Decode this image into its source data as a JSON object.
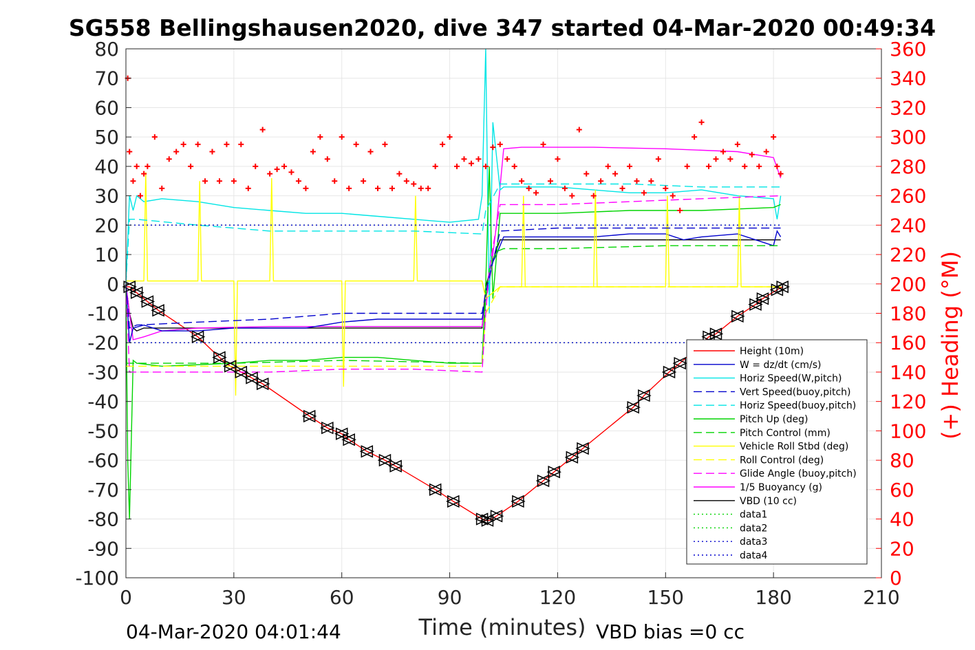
{
  "chart_data": {
    "type": "line",
    "title": "SG558 Bellingshausen2020, dive 347 started 04-Mar-2020 00:49:34",
    "xlabel": "Time (minutes)",
    "ylabel_right": "(+) Heading (°M)",
    "footer_left": "04-Mar-2020 04:01:44",
    "footer_right": "VBD bias =0 cc",
    "xlim": [
      0,
      210
    ],
    "ylim": [
      -100,
      80
    ],
    "ylim_right": [
      0,
      360
    ],
    "xticks": [
      "0",
      "30",
      "60",
      "90",
      "120",
      "150",
      "180",
      "210"
    ],
    "yticks": [
      "80",
      "70",
      "60",
      "50",
      "40",
      "30",
      "20",
      "10",
      "0",
      "-10",
      "-20",
      "-30",
      "-40",
      "-50",
      "-60",
      "-70",
      "-80",
      "-90",
      "-100"
    ],
    "yticks_right": [
      "360",
      "340",
      "320",
      "300",
      "280",
      "260",
      "240",
      "220",
      "200",
      "180",
      "160",
      "140",
      "120",
      "100",
      "80",
      "60",
      "40",
      "20",
      "0"
    ],
    "grid": true,
    "legend_position": "lower-right",
    "legend": [
      {
        "label": "Height (10m)",
        "color": "#ff0000",
        "dash": "solid"
      },
      {
        "label": "W = dz/dt (cm/s)",
        "color": "#0000cd",
        "dash": "solid"
      },
      {
        "label": "Horiz Speed(W,pitch)",
        "color": "#00e5e5",
        "dash": "solid"
      },
      {
        "label": "Vert Speed(buoy,pitch)",
        "color": "#0000cd",
        "dash": "dashed"
      },
      {
        "label": "Horiz Speed(buoy,pitch)",
        "color": "#00e5e5",
        "dash": "dashed"
      },
      {
        "label": "Pitch Up (deg)",
        "color": "#00d400",
        "dash": "solid"
      },
      {
        "label": "Pitch Control (mm)",
        "color": "#00d400",
        "dash": "dashed"
      },
      {
        "label": "Vehicle Roll Stbd (deg)",
        "color": "#ffff00",
        "dash": "solid"
      },
      {
        "label": "Roll Control (deg)",
        "color": "#ffff00",
        "dash": "dashed"
      },
      {
        "label": "Glide Angle (buoy,pitch)",
        "color": "#ff00ff",
        "dash": "dashed"
      },
      {
        "label": "1/5 Buoyancy (g)",
        "color": "#ff00ff",
        "dash": "solid"
      },
      {
        "label": "VBD (10 cc)",
        "color": "#000000",
        "dash": "solid"
      },
      {
        "label": "data1",
        "color": "#00d400",
        "dash": "dotted"
      },
      {
        "label": "data2",
        "color": "#00d400",
        "dash": "dotted"
      },
      {
        "label": "data3",
        "color": "#0000cd",
        "dash": "dotted"
      },
      {
        "label": "data4",
        "color": "#0000cd",
        "dash": "dotted"
      }
    ],
    "series": [
      {
        "name": "Height (10m)",
        "color": "#ff0000",
        "dash": "solid",
        "axis": "left",
        "x": [
          0,
          1,
          3,
          6,
          9,
          20,
          26,
          29,
          32,
          35,
          38,
          51,
          56,
          60,
          62,
          67,
          72,
          75,
          86,
          91,
          99,
          100,
          101,
          103,
          109,
          116,
          119,
          124,
          127,
          141,
          144,
          151,
          154,
          162,
          164,
          170,
          175,
          177,
          181,
          182.5
        ],
        "y": [
          -1,
          -1,
          -3,
          -6,
          -9,
          -18,
          -25,
          -28,
          -30,
          -32,
          -34,
          -45,
          -49,
          -51,
          -53,
          -57,
          -60,
          -62,
          -70,
          -74,
          -80,
          -80.5,
          -80.5,
          -79,
          -74,
          -67,
          -64,
          -59,
          -56,
          -42,
          -38,
          -30,
          -27,
          -18,
          -17,
          -11,
          -7,
          -5,
          -2,
          -1
        ]
      },
      {
        "name": "VBD (10 cc)",
        "color": "#000000",
        "dash": "solid",
        "axis": "left",
        "x": [
          0,
          0.5,
          1,
          2,
          3,
          5,
          20,
          40,
          60,
          80,
          99,
          99.5,
          100,
          102,
          104,
          110,
          130,
          150,
          170,
          182
        ],
        "y": [
          -1,
          -5,
          -10,
          -15,
          -16,
          -15,
          -15,
          -15,
          -15,
          -15,
          -15,
          -8,
          -1,
          8,
          15,
          15,
          15,
          15,
          15,
          15
        ]
      },
      {
        "name": "1/5 Buoyancy (g)",
        "color": "#ff00ff",
        "dash": "solid",
        "axis": "left",
        "x": [
          0,
          1,
          2,
          5,
          10,
          20,
          40,
          60,
          80,
          99,
          100,
          101,
          103,
          105,
          110,
          130,
          150,
          170,
          180,
          182
        ],
        "y": [
          0,
          -10,
          -19,
          -18,
          -16,
          -15,
          -14.5,
          -14.5,
          -14.5,
          -14.5,
          -5,
          0,
          20,
          46,
          46.5,
          46.5,
          46,
          45,
          43,
          36
        ]
      },
      {
        "name": "W = dz/dt (cm/s)",
        "color": "#0000cd",
        "dash": "solid",
        "axis": "left",
        "x": [
          0,
          1,
          2,
          5,
          10,
          20,
          30,
          40,
          50,
          60,
          70,
          80,
          90,
          99,
          100,
          101,
          103,
          105,
          110,
          120,
          130,
          140,
          150,
          155,
          160,
          170,
          180,
          181,
          182
        ],
        "y": [
          0,
          -20,
          -15,
          -14,
          -16,
          -16,
          -15,
          -15,
          -15,
          -13,
          -12,
          -12,
          -12,
          -12,
          -5,
          5,
          10,
          16,
          16,
          16,
          16,
          17,
          17,
          15,
          16,
          17,
          13,
          18,
          16
        ]
      },
      {
        "name": "Horiz Speed(W,pitch)",
        "color": "#00e5e5",
        "dash": "solid",
        "axis": "left",
        "x": [
          0,
          1,
          2,
          3,
          5,
          10,
          20,
          30,
          40,
          50,
          60,
          70,
          80,
          90,
          98,
          99,
          100,
          101,
          102,
          104,
          105,
          110,
          120,
          130,
          140,
          150,
          160,
          170,
          180,
          181,
          182
        ],
        "y": [
          0,
          30,
          25,
          30,
          28,
          29,
          28,
          26,
          25,
          24,
          24,
          23,
          22,
          21,
          22,
          30,
          80,
          -10,
          55,
          32,
          33,
          33,
          33,
          32,
          31,
          31,
          32,
          30,
          29,
          22,
          30
        ]
      },
      {
        "name": "Pitch Up (deg)",
        "color": "#00d400",
        "dash": "solid",
        "axis": "left",
        "x": [
          0,
          0.5,
          1,
          2,
          3,
          10,
          30,
          40,
          50,
          60,
          70,
          80,
          90,
          99,
          100,
          101,
          102,
          104,
          105,
          120,
          140,
          160,
          180,
          182
        ],
        "y": [
          0,
          -60,
          -80,
          -26,
          -27,
          -28,
          -27,
          -26,
          -26,
          -25,
          -25,
          -26,
          -27,
          -27,
          0,
          40,
          -5,
          24,
          24,
          24,
          25,
          25,
          26,
          27
        ]
      },
      {
        "name": "Pitch Control (mm)",
        "color": "#00d400",
        "dash": "dashed",
        "axis": "left",
        "x": [
          0,
          1,
          3,
          30,
          60,
          99,
          100,
          101,
          103,
          105,
          120,
          150,
          182
        ],
        "y": [
          -27,
          -27,
          -27,
          -27,
          -26,
          -27,
          -5,
          5,
          11,
          12,
          12,
          13,
          13
        ]
      },
      {
        "name": "Vehicle Roll Stbd (deg)",
        "color": "#ffff00",
        "dash": "solid",
        "axis": "left",
        "x": [
          0,
          5,
          5.5,
          6,
          20,
          20.5,
          21,
          30,
          30.5,
          31,
          40,
          40.5,
          41,
          60,
          60.5,
          61,
          80,
          80.5,
          81,
          99,
          100,
          104,
          110,
          110.5,
          111,
          130,
          130.5,
          131,
          150,
          150.5,
          151,
          170,
          170.5,
          171,
          182
        ],
        "y": [
          1,
          1,
          38,
          1,
          1,
          35,
          1,
          1,
          -38,
          1,
          1,
          36,
          1,
          1,
          -35,
          1,
          1,
          30,
          1,
          1,
          -5,
          -1,
          -1,
          30,
          -1,
          -1,
          32,
          -1,
          -1,
          30,
          -1,
          -1,
          30,
          -1,
          -1
        ]
      },
      {
        "name": "Roll Control (deg)",
        "color": "#ffff00",
        "dash": "dashed",
        "axis": "left",
        "x": [
          0,
          3,
          20,
          40,
          60,
          80,
          99,
          100,
          104,
          120,
          140,
          160,
          182
        ],
        "y": [
          -28,
          -28,
          -28,
          -28,
          -28,
          -28,
          -28,
          -10,
          -1,
          -1,
          -1,
          -1,
          -1
        ]
      },
      {
        "name": "Glide Angle (buoy,pitch)",
        "color": "#ff00ff",
        "dash": "dashed",
        "axis": "left",
        "x": [
          0,
          1,
          3,
          20,
          40,
          60,
          80,
          99,
          100,
          101,
          104,
          120,
          140,
          160,
          182
        ],
        "y": [
          0,
          -30,
          -30,
          -30,
          -30,
          -29,
          -29,
          -30,
          -10,
          5,
          27,
          27,
          28,
          29,
          30
        ]
      },
      {
        "name": "Vert Speed(buoy,pitch)",
        "color": "#0000cd",
        "dash": "dashed",
        "axis": "left",
        "x": [
          0,
          1,
          3,
          20,
          40,
          60,
          80,
          99,
          100,
          104,
          120,
          140,
          160,
          182
        ],
        "y": [
          0,
          -15,
          -14,
          -13,
          -12,
          -10,
          -10,
          -10,
          -3,
          18,
          19,
          19,
          19,
          19
        ]
      },
      {
        "name": "Horiz Speed(buoy,pitch)",
        "color": "#00e5e5",
        "dash": "dashed",
        "axis": "left",
        "x": [
          0,
          1,
          3,
          20,
          40,
          60,
          80,
          99,
          100,
          104,
          120,
          140,
          160,
          182
        ],
        "y": [
          0,
          22,
          22,
          20,
          18,
          18,
          18,
          17,
          25,
          34,
          34,
          34,
          33,
          33
        ]
      },
      {
        "name": "data1",
        "color": "#00d400",
        "dash": "dotted",
        "axis": "left",
        "x": [
          0,
          182
        ],
        "y": [
          -20,
          -20
        ]
      },
      {
        "name": "data2",
        "color": "#00d400",
        "dash": "dotted",
        "axis": "left",
        "x": [
          0,
          182
        ],
        "y": [
          20,
          20
        ]
      },
      {
        "name": "data3",
        "color": "#0000cd",
        "dash": "dotted",
        "axis": "left",
        "x": [
          0,
          182
        ],
        "y": [
          -20,
          -20
        ]
      },
      {
        "name": "data4",
        "color": "#0000cd",
        "dash": "dotted",
        "axis": "left",
        "x": [
          0,
          182
        ],
        "y": [
          20,
          20
        ]
      },
      {
        "name": "(+) Heading (°M)",
        "color": "#ff0000",
        "dash": "none",
        "marker": "+",
        "axis": "right",
        "x": [
          0.5,
          1,
          2,
          3,
          4,
          5,
          6,
          8,
          10,
          12,
          14,
          16,
          18,
          20,
          22,
          24,
          26,
          28,
          30,
          32,
          34,
          36,
          38,
          40,
          42,
          44,
          46,
          48,
          50,
          52,
          54,
          56,
          58,
          60,
          62,
          64,
          66,
          68,
          70,
          72,
          74,
          76,
          78,
          80,
          82,
          84,
          86,
          88,
          90,
          92,
          94,
          96,
          98,
          100,
          102,
          104,
          106,
          108,
          110,
          112,
          114,
          116,
          118,
          120,
          122,
          124,
          126,
          128,
          130,
          132,
          134,
          136,
          138,
          140,
          142,
          144,
          146,
          148,
          150,
          152,
          154,
          156,
          158,
          160,
          162,
          164,
          166,
          168,
          170,
          172,
          174,
          176,
          178,
          180,
          181,
          182
        ],
        "y": [
          340,
          290,
          270,
          280,
          260,
          275,
          280,
          300,
          265,
          285,
          290,
          295,
          280,
          295,
          270,
          290,
          270,
          295,
          270,
          295,
          265,
          280,
          305,
          275,
          278,
          280,
          276,
          270,
          265,
          290,
          300,
          285,
          270,
          300,
          265,
          295,
          270,
          290,
          265,
          295,
          265,
          275,
          270,
          268,
          265,
          265,
          280,
          295,
          300,
          280,
          285,
          282,
          285,
          280,
          293,
          295,
          285,
          280,
          270,
          265,
          262,
          295,
          270,
          285,
          265,
          260,
          305,
          275,
          260,
          270,
          280,
          275,
          265,
          280,
          270,
          262,
          270,
          285,
          265,
          260,
          250,
          280,
          300,
          310,
          280,
          285,
          290,
          285,
          295,
          280,
          288,
          280,
          290,
          300,
          280,
          275
        ]
      },
      {
        "name": "Dive markers",
        "color": "#000000",
        "dash": "none",
        "marker": "triangle",
        "axis": "left",
        "x": [
          1,
          3,
          6,
          9,
          20,
          26,
          29,
          32,
          35,
          38,
          51,
          56,
          60,
          62,
          67,
          72,
          75,
          86,
          91,
          99,
          100.5,
          103,
          109,
          116,
          119,
          124,
          127,
          141,
          144,
          151,
          154,
          162,
          164,
          170,
          175,
          177,
          181,
          182.5
        ],
        "y": [
          -1,
          -3,
          -6,
          -9,
          -18,
          -25,
          -28,
          -30,
          -32,
          -34,
          -45,
          -49,
          -51,
          -53,
          -57,
          -60,
          -62,
          -70,
          -74,
          -80,
          -80.5,
          -79,
          -74,
          -67,
          -64,
          -59,
          -56,
          -42,
          -38,
          -30,
          -27,
          -18,
          -17,
          -11,
          -7,
          -5,
          -2,
          -1
        ]
      }
    ]
  }
}
